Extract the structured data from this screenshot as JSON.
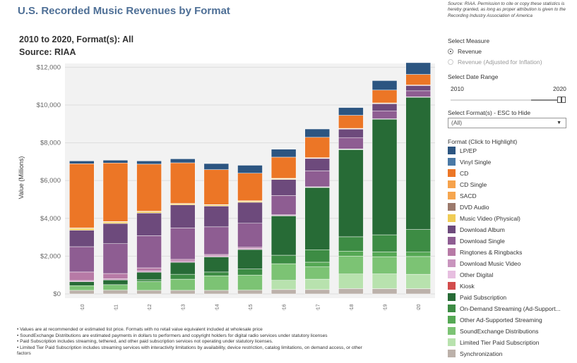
{
  "title": "U.S. Recorded Music Revenues by Format",
  "subtitle_line1": "2010 to 2020, Format(s): All",
  "subtitle_line2": "Source: RIAA",
  "source_note": "Source: RIAA. Permission to cite or copy these statistics is hereby granted, as long as proper attribution is given to the Recording Industry Association of America",
  "controls": {
    "measure_title": "Select Measure",
    "measure_options": [
      {
        "label": "Revenue",
        "selected": true
      },
      {
        "label": "Revenue (Adjusted for Inflation)",
        "selected": false
      }
    ],
    "date_title": "Select Date Range",
    "date_start": "2010",
    "date_end": "2020",
    "format_title": "Select Format(s) - ESC to Hide",
    "format_value": "(All)",
    "legend_title": "Format (Click to Highlight)"
  },
  "notes": [
    "• Values are at recommended or estimated list price. Formats with no retail value equivalent included at wholesale price",
    "• SoundExchange Distributions are estimated payments in dollars to performers and copyright holders for digital radio services under statutory licenses",
    "• Paid Subscription includes streaming, tethered, and other paid subscription services not operating under statutory licenses.",
    "• Limited Tier Paid Subscription includes streaming services with interactivity limitations by availability, device restriction, catalog limitations, on demand access, or other",
    "factors"
  ],
  "chart_data": {
    "type": "bar",
    "stacked": true,
    "title": "U.S. Recorded Music Revenues by Format",
    "xlabel": "",
    "ylabel": "Value (Millions)",
    "ylim": [
      0,
      12200
    ],
    "yticks": [
      0,
      2000,
      4000,
      6000,
      8000,
      10000,
      12000
    ],
    "ytick_labels": [
      "$0",
      "$2,000",
      "$4,000",
      "$6,000",
      "$8,000",
      "$10,000",
      "$12,000"
    ],
    "categories": [
      "2010",
      "2011",
      "2012",
      "2013",
      "2014",
      "2015",
      "2016",
      "2017",
      "2018",
      "2019",
      "2020"
    ],
    "series": [
      {
        "name": "Synchronization",
        "color": "#bcb1aa",
        "values": [
          190,
          200,
          190,
          190,
          190,
          200,
          230,
          230,
          285,
          280,
          280
        ]
      },
      {
        "name": "Limited Tier Paid Subscription",
        "color": "#b8e2ae",
        "values": [
          0,
          0,
          0,
          0,
          0,
          0,
          490,
          550,
          770,
          780,
          760
        ]
      },
      {
        "name": "SoundExchange Distributions",
        "color": "#7cc374",
        "values": [
          250,
          290,
          460,
          590,
          770,
          800,
          880,
          650,
          950,
          910,
          940
        ]
      },
      {
        "name": "Other Ad-Supported Streaming",
        "color": "#55a854",
        "values": [
          0,
          0,
          0,
          0,
          0,
          0,
          0,
          250,
          260,
          250,
          230
        ]
      },
      {
        "name": "On-Demand Streaming (Ad-Supported)",
        "color": "#3d8c44",
        "values": [
          0,
          0,
          100,
          260,
          200,
          320,
          450,
          660,
          760,
          910,
          1200
        ]
      },
      {
        "name": "Paid Subscription",
        "color": "#276b36",
        "values": [
          210,
          250,
          400,
          630,
          800,
          1030,
          2080,
          3300,
          4620,
          6120,
          7000
        ]
      },
      {
        "name": "Kiosk",
        "color": "#d24c4c",
        "values": [
          0,
          0,
          0,
          0,
          0,
          0,
          0,
          0,
          0,
          0,
          0
        ]
      },
      {
        "name": "Other Digital",
        "color": "#e7bfe0",
        "values": [
          0,
          0,
          0,
          0,
          0,
          0,
          0,
          0,
          0,
          0,
          0
        ]
      },
      {
        "name": "Download Music Video",
        "color": "#c995be",
        "values": [
          60,
          60,
          60,
          60,
          60,
          60,
          20,
          10,
          10,
          0,
          0
        ]
      },
      {
        "name": "Ringtones & Ringbacks",
        "color": "#b77aa6",
        "values": [
          450,
          280,
          170,
          100,
          70,
          60,
          40,
          20,
          20,
          20,
          20
        ]
      },
      {
        "name": "Download Single",
        "color": "#8e5d92",
        "values": [
          1340,
          1580,
          1700,
          1660,
          1460,
          1270,
          1020,
          840,
          600,
          420,
          320
        ]
      },
      {
        "name": "Download Album",
        "color": "#6d4a7c",
        "values": [
          870,
          1070,
          1200,
          1220,
          1100,
          1110,
          850,
          660,
          450,
          380,
          280
        ]
      },
      {
        "name": "Music Video (Physical)",
        "color": "#f0cc55",
        "values": [
          100,
          80,
          80,
          60,
          60,
          60,
          40,
          30,
          30,
          30,
          20
        ]
      },
      {
        "name": "DVD Audio",
        "color": "#9c7a6c",
        "values": [
          0,
          0,
          0,
          0,
          0,
          0,
          0,
          0,
          0,
          0,
          0
        ]
      },
      {
        "name": "SACD",
        "color": "#f6a64f",
        "values": [
          0,
          0,
          0,
          0,
          0,
          0,
          0,
          0,
          0,
          0,
          0
        ]
      },
      {
        "name": "CD Single",
        "color": "#f6a24c",
        "values": [
          30,
          20,
          20,
          20,
          20,
          20,
          20,
          10,
          10,
          10,
          10
        ]
      },
      {
        "name": "CD",
        "color": "#ec7626",
        "values": [
          3390,
          3100,
          2490,
          2150,
          1850,
          1460,
          1120,
          1080,
          690,
          680,
          560
        ]
      },
      {
        "name": "Vinyl Single",
        "color": "#4a79a6",
        "values": [
          0,
          0,
          0,
          0,
          0,
          0,
          0,
          0,
          0,
          0,
          0
        ]
      },
      {
        "name": "LP/EP",
        "color": "#2c5581",
        "values": [
          150,
          150,
          170,
          210,
          320,
          420,
          420,
          440,
          410,
          500,
          620
        ]
      }
    ]
  },
  "legend_items": [
    {
      "label": "LP/EP",
      "color": "#2c5581"
    },
    {
      "label": "Vinyl Single",
      "color": "#4a79a6"
    },
    {
      "label": "CD",
      "color": "#ec7626"
    },
    {
      "label": "CD Single",
      "color": "#f6a24c"
    },
    {
      "label": "SACD",
      "color": "#f6a64f"
    },
    {
      "label": "DVD Audio",
      "color": "#9c7a6c"
    },
    {
      "label": "Music Video (Physical)",
      "color": "#f0cc55"
    },
    {
      "label": "Download Album",
      "color": "#6d4a7c"
    },
    {
      "label": "Download Single",
      "color": "#8e5d92"
    },
    {
      "label": "Ringtones & Ringbacks",
      "color": "#b77aa6"
    },
    {
      "label": "Download Music Video",
      "color": "#c995be"
    },
    {
      "label": "Other Digital",
      "color": "#e7bfe0"
    },
    {
      "label": "Kiosk",
      "color": "#d24c4c"
    },
    {
      "label": "Paid Subscription",
      "color": "#276b36"
    },
    {
      "label": "On-Demand Streaming (Ad-Support...",
      "color": "#3d8c44"
    },
    {
      "label": "Other Ad-Supported Streaming",
      "color": "#55a854"
    },
    {
      "label": "SoundExchange Distributions",
      "color": "#7cc374"
    },
    {
      "label": "Limited Tier Paid Subscription",
      "color": "#b8e2ae"
    },
    {
      "label": "Synchronization",
      "color": "#bcb1aa"
    }
  ]
}
